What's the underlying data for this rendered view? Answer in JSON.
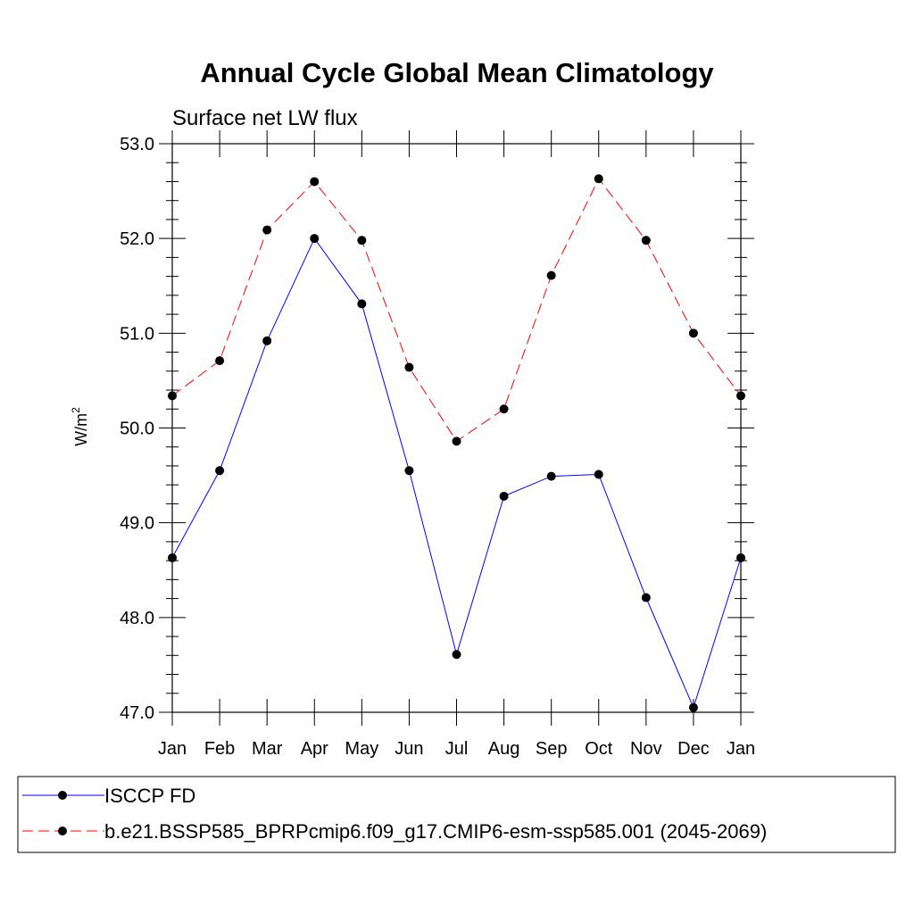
{
  "chart_data": {
    "type": "line",
    "title": "Annual Cycle Global Mean Climatology",
    "subtitle": "Surface net LW flux",
    "ylabel": "W/m",
    "ylabel_superscript": "2",
    "xlabel": "",
    "ylim": [
      47.0,
      53.0
    ],
    "yticks": [
      "47.0",
      "48.0",
      "49.0",
      "50.0",
      "51.0",
      "52.0",
      "53.0"
    ],
    "categories": [
      "Jan",
      "Feb",
      "Mar",
      "Apr",
      "May",
      "Jun",
      "Jul",
      "Aug",
      "Sep",
      "Oct",
      "Nov",
      "Dec",
      "Jan"
    ],
    "series": [
      {
        "name": "ISCCP FD",
        "color": "#0000ff",
        "dash": "solid",
        "values": [
          48.63,
          49.55,
          50.92,
          52.0,
          51.31,
          49.55,
          47.61,
          49.28,
          49.49,
          49.51,
          48.21,
          47.05,
          48.63
        ]
      },
      {
        "name": "b.e21.BSSP585_BPRPcmip6.f09_g17.CMIP6-esm-ssp585.001 (2045-2069)",
        "color": "#ff0000",
        "dash": "dashed",
        "values": [
          50.34,
          50.71,
          52.09,
          52.6,
          51.98,
          50.64,
          49.86,
          50.2,
          51.61,
          52.63,
          51.98,
          51.0,
          50.34
        ]
      }
    ],
    "legend": "bottom"
  }
}
